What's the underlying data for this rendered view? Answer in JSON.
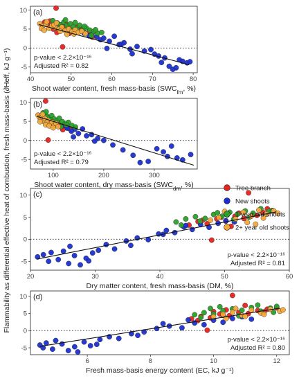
{
  "figure": {
    "y_axis_title": "Flammability as differential effective heat of combustion, fresh mass-basis (∂Heff, kJ g⁻¹)"
  },
  "legend": [
    {
      "label": "Tree branch",
      "color": "#e8231f"
    },
    {
      "label": "New shoots",
      "color": "#1b2fd0"
    },
    {
      "label": "1 year old shoots",
      "color": "#2aa12a"
    },
    {
      "label": "2+ year old shoots",
      "color": "#f4a93a"
    }
  ],
  "chart_data": [
    {
      "type": "scatter",
      "panel": "(a)",
      "xlabel": "Shoot water content, fresh mass-basis (SWCfm, %)",
      "xlim": [
        40,
        81
      ],
      "ylim": [
        -6.5,
        11
      ],
      "xticks": [
        40,
        50,
        60,
        70,
        80
      ],
      "yticks": [
        -5,
        0,
        5,
        10
      ],
      "reference_line_y": 0,
      "fit_line": {
        "x": [
          42,
          79
        ],
        "y": [
          6.2,
          -4.4
        ]
      },
      "p_value": "p-value < 2.2×10⁻¹⁶",
      "r2": "Adjusted R² = 0.82",
      "annotation_position": "bottom-left",
      "series": [
        {
          "name": "Tree branch",
          "x": [
            46.3,
            43.5,
            44.2,
            45.1,
            46.0,
            46.8,
            47.5,
            48.3,
            49.2,
            44.8,
            45.6,
            47.0,
            48.8,
            50.1,
            51.5,
            53.0,
            54.5,
            47.9,
            49.6,
            52.2,
            55.2,
            43.9,
            46.5,
            48.1
          ],
          "y": [
            10.5,
            6.8,
            6.2,
            5.9,
            6.5,
            5.6,
            6.1,
            5.2,
            5.8,
            7.1,
            5.0,
            4.8,
            6.3,
            4.9,
            5.4,
            4.6,
            4.2,
            0.3,
            3.9,
            5.1,
            2.9,
            6.5,
            4.1,
            5.5
          ]
        },
        {
          "name": "New shoots",
          "x": [
            55.1,
            56.3,
            57.2,
            58.0,
            59.4,
            60.6,
            61.8,
            63.0,
            64.5,
            66.2,
            68.0,
            69.6,
            70.5,
            71.5,
            72.2,
            73.0,
            74.1,
            75.0,
            75.8,
            76.6,
            77.4,
            78.5,
            79.2,
            53.2,
            54.4,
            58.8,
            62.3,
            65.0
          ],
          "y": [
            3.6,
            3.0,
            2.2,
            2.6,
            1.8,
            3.1,
            0.9,
            1.4,
            -0.3,
            0.4,
            -0.8,
            -0.4,
            -1.6,
            -2.1,
            -3.8,
            -2.6,
            -4.8,
            -5.6,
            -5.2,
            -3.1,
            -3.5,
            -3.9,
            -3.6,
            3.9,
            3.2,
            -0.1,
            1.0,
            -1.5
          ]
        },
        {
          "name": "1 year old shoots",
          "x": [
            45.5,
            46.6,
            47.4,
            48.2,
            49.0,
            49.8,
            50.6,
            51.4,
            52.1,
            52.9,
            53.7,
            54.6,
            55.6,
            56.5,
            57.5,
            48.6,
            51.0,
            53.3,
            55.0,
            56.0,
            46.9,
            50.2
          ],
          "y": [
            7.2,
            6.6,
            6.1,
            6.8,
            5.9,
            6.4,
            5.6,
            5.1,
            6.0,
            4.9,
            5.3,
            4.7,
            4.4,
            3.9,
            4.1,
            7.4,
            6.7,
            5.7,
            3.3,
            4.8,
            5.3,
            4.5
          ]
        },
        {
          "name": "2+ year old shoots",
          "x": [
            42.3,
            43.0,
            43.8,
            44.6,
            45.3,
            46.1,
            47.0,
            47.7,
            48.5,
            49.4,
            50.2,
            51.0,
            51.8,
            52.6,
            53.5,
            42.7,
            44.0,
            45.8,
            47.3,
            49.0,
            50.7,
            43.4,
            46.4
          ],
          "y": [
            6.4,
            5.8,
            6.3,
            5.2,
            5.9,
            5.4,
            4.9,
            5.5,
            4.6,
            5.0,
            4.3,
            4.8,
            4.1,
            4.4,
            3.8,
            5.1,
            6.9,
            6.1,
            4.4,
            3.6,
            3.7,
            4.7,
            6.6
          ]
        }
      ]
    },
    {
      "type": "scatter",
      "panel": "(b)",
      "xlabel": "Shoot water content, dry mass-basis (SWCdm, %)",
      "xlim": [
        55,
        385
      ],
      "ylim": [
        -7.5,
        11
      ],
      "xticks": [
        100,
        200,
        300
      ],
      "yticks": [
        -5,
        0,
        5,
        10
      ],
      "reference_line_y": 0,
      "fit_line": {
        "x": [
          68,
          378
        ],
        "y": [
          6.3,
          -6.5
        ]
      },
      "p_value": "p-value < 2.2×10⁻¹⁶",
      "r2": "Adjusted R² = 0.79",
      "annotation_position": "bottom-left",
      "series": [
        {
          "name": "Tree branch",
          "x": [
            85,
            72,
            76,
            80,
            83,
            88,
            92,
            96,
            101,
            106,
            111,
            117,
            122,
            128,
            133,
            90,
            99,
            108,
            119
          ],
          "y": [
            10.3,
            6.5,
            6.1,
            5.7,
            5.2,
            6.0,
            4.8,
            5.4,
            4.5,
            4.9,
            4.0,
            3.6,
            4.2,
            3.3,
            3.0,
            0.1,
            3.8,
            5.1,
            2.8
          ]
        },
        {
          "name": "New shoots",
          "x": [
            122,
            128,
            136,
            143,
            150,
            158,
            166,
            176,
            188,
            200,
            218,
            238,
            258,
            272,
            288,
            305,
            318,
            326,
            334,
            345,
            356,
            372,
            140,
            182
          ],
          "y": [
            3.9,
            3.2,
            2.4,
            2.9,
            1.8,
            3.0,
            1.2,
            1.5,
            0.5,
            0.0,
            -1.2,
            -2.5,
            -3.9,
            -5.8,
            -5.5,
            -2.2,
            -3.0,
            -4.2,
            -1.5,
            -4.6,
            -5.1,
            -3.7,
            0.9,
            -0.2
          ]
        },
        {
          "name": "1 year old shoots",
          "x": [
            80,
            84,
            88,
            92,
            97,
            102,
            107,
            112,
            118,
            124,
            130,
            137,
            144,
            86,
            95,
            104,
            115,
            126
          ],
          "y": [
            7.2,
            6.8,
            6.3,
            5.9,
            6.5,
            5.6,
            5.1,
            5.8,
            4.9,
            4.4,
            4.7,
            3.9,
            3.5,
            7.5,
            5.3,
            4.2,
            3.6,
            4.1
          ]
        },
        {
          "name": "2+ year old shoots",
          "x": [
            70,
            73,
            75,
            78,
            81,
            84,
            87,
            90,
            94,
            98,
            102,
            106,
            110,
            74,
            79,
            85,
            92,
            100
          ],
          "y": [
            6.6,
            6.0,
            5.5,
            6.2,
            5.0,
            5.7,
            4.6,
            5.2,
            4.3,
            4.8,
            4.0,
            4.4,
            3.6,
            4.9,
            6.8,
            4.1,
            3.8,
            3.3
          ]
        }
      ]
    },
    {
      "type": "scatter",
      "panel": "(c)",
      "xlabel": "Dry matter content, fresh mass-basis (DM, %)",
      "xlim": [
        20,
        60
      ],
      "ylim": [
        -7,
        11.5
      ],
      "xticks": [
        20,
        30,
        40,
        50,
        60
      ],
      "yticks": [
        -5,
        0,
        5,
        10
      ],
      "reference_line_y": 0,
      "fit_line": {
        "x": [
          21,
          58
        ],
        "y": [
          -4.5,
          6.2
        ]
      },
      "p_value": "p-value < 2.2×10⁻¹⁶",
      "r2": "Adjusted R² = 0.81",
      "annotation_position": "bottom-right",
      "series": [
        {
          "name": "Tree branch",
          "x": [
            53.7,
            44.5,
            45.9,
            47.3,
            48.8,
            50.2,
            51.6,
            53.0,
            54.4,
            55.9,
            57.3,
            46.6,
            49.5,
            52.2,
            55.0,
            56.6,
            48.0,
            51.0
          ],
          "y": [
            10.5,
            3.2,
            4.0,
            3.5,
            4.6,
            4.1,
            5.2,
            4.7,
            5.6,
            6.1,
            6.5,
            4.3,
            5.0,
            5.9,
            5.4,
            6.9,
            -0.2,
            2.9
          ]
        },
        {
          "name": "New shoots",
          "x": [
            21.1,
            22.0,
            23.2,
            24.3,
            25.1,
            25.9,
            26.8,
            27.7,
            28.6,
            29.6,
            30.5,
            31.7,
            33.0,
            34.8,
            36.5,
            38.2,
            39.8,
            41.0,
            42.3,
            43.7,
            45.0,
            46.3,
            47.6,
            49.0,
            50.2,
            51.5,
            22.8,
            26.1,
            29.0,
            35.5,
            40.5,
            44.0
          ],
          "y": [
            -4.0,
            -3.5,
            -3.0,
            -4.6,
            -2.7,
            -5.5,
            -3.7,
            -5.8,
            -4.3,
            -3.1,
            -2.5,
            -1.2,
            -2.2,
            -0.4,
            0.3,
            -0.1,
            1.2,
            2.0,
            1.5,
            2.8,
            2.2,
            3.3,
            2.7,
            3.6,
            4.2,
            3.9,
            -5.0,
            -1.6,
            -4.9,
            -1.4,
            1.1,
            3.1
          ]
        },
        {
          "name": "1 year old shoots",
          "x": [
            42.5,
            44.0,
            45.5,
            47.0,
            48.3,
            49.6,
            50.8,
            52.0,
            53.2,
            54.4,
            55.6,
            56.8,
            46.2,
            48.9,
            51.4,
            53.8,
            57.4,
            43.3
          ],
          "y": [
            3.9,
            4.6,
            5.1,
            4.7,
            5.6,
            5.2,
            6.1,
            5.7,
            6.4,
            5.9,
            6.9,
            6.3,
            4.1,
            6.0,
            4.5,
            5.0,
            6.5,
            3.2
          ]
        },
        {
          "name": "2+ year old shoots",
          "x": [
            47.8,
            49.1,
            50.4,
            51.7,
            52.9,
            54.1,
            55.3,
            56.5,
            57.6,
            58.2,
            53.5,
            56.0,
            50.0,
            54.8
          ],
          "y": [
            4.3,
            4.9,
            5.5,
            4.6,
            6.1,
            5.2,
            6.6,
            5.7,
            6.4,
            5.9,
            3.8,
            4.8,
            6.3,
            3.4
          ]
        }
      ]
    },
    {
      "type": "scatter",
      "panel": "(d)",
      "xlabel": "Fresh mass-basis energy content (EC, kJ g⁻¹)",
      "xlim": [
        4.2,
        12.4
      ],
      "ylim": [
        -7,
        11.5
      ],
      "xticks": [
        6,
        8,
        10,
        12
      ],
      "yticks": [
        -5,
        0,
        5,
        10
      ],
      "reference_line_y": 0,
      "fit_line": {
        "x": [
          4.5,
          12.1
        ],
        "y": [
          -4.6,
          6.5
        ]
      },
      "p_value": "p-value < 2.2×10⁻¹⁶",
      "r2": "Adjusted R² = 0.80",
      "annotation_position": "bottom-right",
      "series": [
        {
          "name": "Tree branch",
          "x": [
            10.6,
            9.3,
            9.6,
            9.9,
            10.2,
            10.5,
            10.8,
            11.1,
            11.4,
            11.7,
            12.0,
            9.5,
            10.0,
            10.4,
            11.0,
            11.6,
            9.8,
            10.3
          ],
          "y": [
            10.2,
            3.4,
            4.1,
            3.7,
            4.8,
            4.3,
            5.2,
            4.9,
            5.8,
            6.2,
            6.6,
            2.9,
            5.5,
            6.0,
            7.3,
            5.4,
            0.1,
            4.4
          ]
        },
        {
          "name": "New shoots",
          "x": [
            4.5,
            4.7,
            4.9,
            5.2,
            5.4,
            5.6,
            5.9,
            6.1,
            6.4,
            6.7,
            7.0,
            7.4,
            7.8,
            8.2,
            8.6,
            9.0,
            9.4,
            9.7,
            10.0,
            10.3,
            10.6,
            10.9,
            11.2,
            4.6,
            5.0,
            5.7,
            6.3,
            7.6,
            8.4,
            9.2
          ],
          "y": [
            -4.2,
            -3.6,
            -5.4,
            -3.9,
            -5.8,
            -4.7,
            -3.3,
            -4.4,
            -2.6,
            -1.8,
            -2.3,
            -0.9,
            -0.4,
            0.6,
            1.3,
            0.8,
            2.2,
            1.7,
            3.0,
            2.4,
            3.5,
            4.0,
            3.3,
            -5.0,
            -2.9,
            -6.2,
            -4.0,
            -1.4,
            2.0,
            3.1
          ]
        },
        {
          "name": "1 year old shoots",
          "x": [
            9.4,
            9.7,
            10.0,
            10.3,
            10.6,
            10.9,
            11.2,
            11.5,
            11.8,
            12.0,
            9.6,
            10.2,
            10.8,
            11.4,
            11.9,
            9.9
          ],
          "y": [
            4.6,
            5.2,
            4.8,
            5.7,
            6.3,
            5.9,
            6.7,
            5.6,
            6.5,
            7.0,
            3.8,
            6.9,
            4.3,
            7.4,
            5.3,
            6.4
          ]
        },
        {
          "name": "2+ year old shoots",
          "x": [
            10.0,
            10.3,
            10.6,
            10.9,
            11.2,
            11.5,
            11.8,
            12.1,
            10.4,
            11.0,
            11.6,
            12.2,
            10.7
          ],
          "y": [
            4.0,
            4.7,
            5.3,
            4.4,
            5.9,
            5.1,
            6.2,
            5.6,
            3.5,
            4.1,
            4.7,
            6.0,
            6.4
          ]
        }
      ]
    }
  ]
}
